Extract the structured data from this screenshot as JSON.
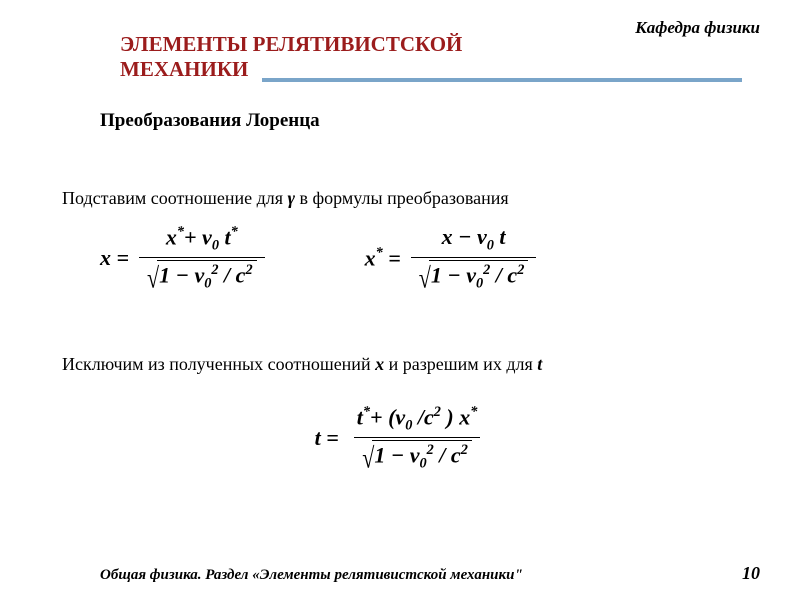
{
  "colors": {
    "title": "#9b1c1c",
    "rule": "#7aa5c9",
    "text": "#000000",
    "bg": "#ffffff"
  },
  "header": {
    "department": "Кафедра физики"
  },
  "title": {
    "line1": "ЭЛЕМЕНТЫ  РЕЛЯТИВИСТСКОЙ",
    "line2": "МЕХАНИКИ"
  },
  "subtitle": "Преобразования Лоренца",
  "para1": {
    "pre": "Подставим соотношение для ",
    "sym": "γ",
    "post": " в формулы преобразования"
  },
  "formula1": {
    "lhs": "x =",
    "num_parts": [
      "x",
      "*",
      "+ v",
      "0",
      " t",
      "*"
    ],
    "den_parts": [
      "1 − v",
      "0",
      "2",
      " / c",
      "2"
    ]
  },
  "formula2": {
    "lhs_parts": [
      "x",
      "*",
      " ="
    ],
    "num_parts": [
      "x − v",
      "0",
      " t"
    ],
    "den_parts": [
      "1 − v",
      "0",
      "2",
      " / c",
      "2"
    ]
  },
  "para2": {
    "pre": "Исключим из полученных соотношений ",
    "x": "x",
    "mid": " и разрешим их для ",
    "t": "t"
  },
  "formula3": {
    "lhs": "t =",
    "num_parts": [
      "t",
      "*",
      "+ (v",
      "0",
      " /c",
      "2",
      " ) x",
      "*"
    ],
    "den_parts": [
      "1 − v",
      "0",
      "2",
      " / c",
      "2"
    ]
  },
  "footer": {
    "text": "Общая физика. Раздел «Элементы релятивистской механики\"",
    "page": "10"
  },
  "typography": {
    "title_fontsize": 21,
    "body_fontsize": 18,
    "formula_fontsize": 22,
    "footer_fontsize": 15
  }
}
